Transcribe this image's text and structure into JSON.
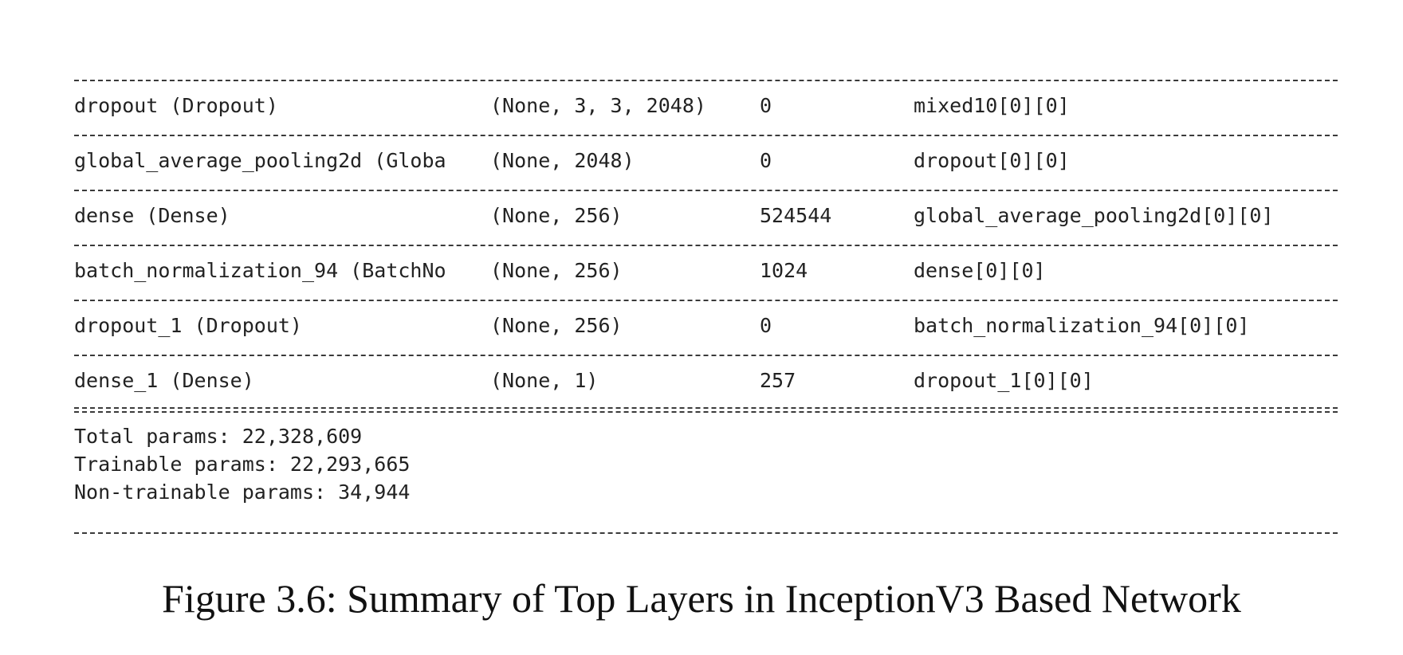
{
  "rows": [
    {
      "layer": "dropout (Dropout)",
      "shape": "(None, 3, 3, 2048)",
      "params": "0",
      "connected": "mixed10[0][0]"
    },
    {
      "layer": "global_average_pooling2d (Globa",
      "shape": "(None, 2048)",
      "params": "0",
      "connected": "dropout[0][0]"
    },
    {
      "layer": "dense (Dense)",
      "shape": "(None, 256)",
      "params": "524544",
      "connected": "global_average_pooling2d[0][0]"
    },
    {
      "layer": "batch_normalization_94 (BatchNo",
      "shape": "(None, 256)",
      "params": "1024",
      "connected": "dense[0][0]"
    },
    {
      "layer": "dropout_1 (Dropout)",
      "shape": "(None, 256)",
      "params": "0",
      "connected": "batch_normalization_94[0][0]"
    },
    {
      "layer": "dense_1 (Dense)",
      "shape": "(None, 1)",
      "params": "257",
      "connected": "dropout_1[0][0]"
    }
  ],
  "totals": {
    "total": "Total params: 22,328,609",
    "trainable": "Trainable params: 22,293,665",
    "non_trainable": "Non-trainable params: 34,944"
  },
  "caption": "Figure 3.6: Summary of Top Layers in InceptionV3 Based Network"
}
